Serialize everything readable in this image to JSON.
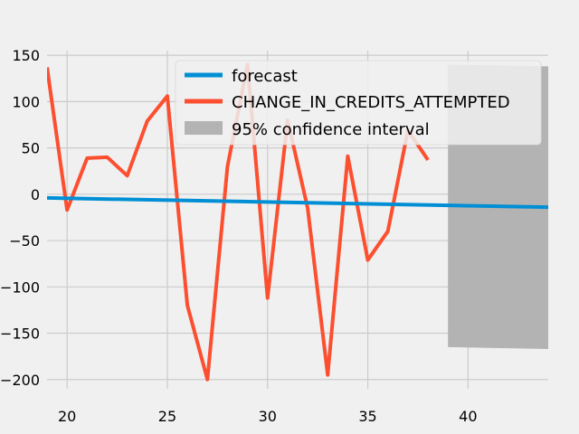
{
  "chart_data": {
    "type": "line",
    "xlim": [
      19,
      44
    ],
    "ylim": [
      -210,
      155
    ],
    "grid": true,
    "x_ticks": [
      20,
      25,
      30,
      35,
      40
    ],
    "y_ticks": [
      150,
      100,
      50,
      0,
      -50,
      -100,
      -150,
      -200
    ],
    "legend": {
      "placement": "top-right",
      "entries": [
        {
          "label": "forecast",
          "color": "#008fd5",
          "kind": "line"
        },
        {
          "label": "CHANGE_IN_CREDITS_ATTEMPTED",
          "color": "#fc4f30",
          "kind": "line"
        },
        {
          "label": "95% confidence interval",
          "color": "#b3b3b3",
          "kind": "patch"
        }
      ]
    },
    "series": [
      {
        "name": "CHANGE_IN_CREDITS_ATTEMPTED",
        "color": "#fc4f30",
        "x": [
          19,
          20,
          21,
          22,
          23,
          24,
          25,
          26,
          27,
          28,
          29,
          30,
          31,
          32,
          33,
          34,
          35,
          36,
          37,
          38
        ],
        "y": [
          137,
          -17,
          39,
          40,
          20,
          79,
          106,
          -120,
          -200,
          30,
          140,
          -112,
          80,
          -15,
          -195,
          41,
          -71,
          -40,
          69,
          37
        ]
      },
      {
        "name": "forecast",
        "color": "#008fd5",
        "x": [
          19,
          44
        ],
        "y": [
          -4,
          -14
        ]
      }
    ],
    "confidence_interval": {
      "label": "95% confidence interval",
      "color": "#b3b3b3",
      "x": [
        39,
        44
      ],
      "upper": [
        140,
        138
      ],
      "lower": [
        -165,
        -167
      ]
    }
  }
}
